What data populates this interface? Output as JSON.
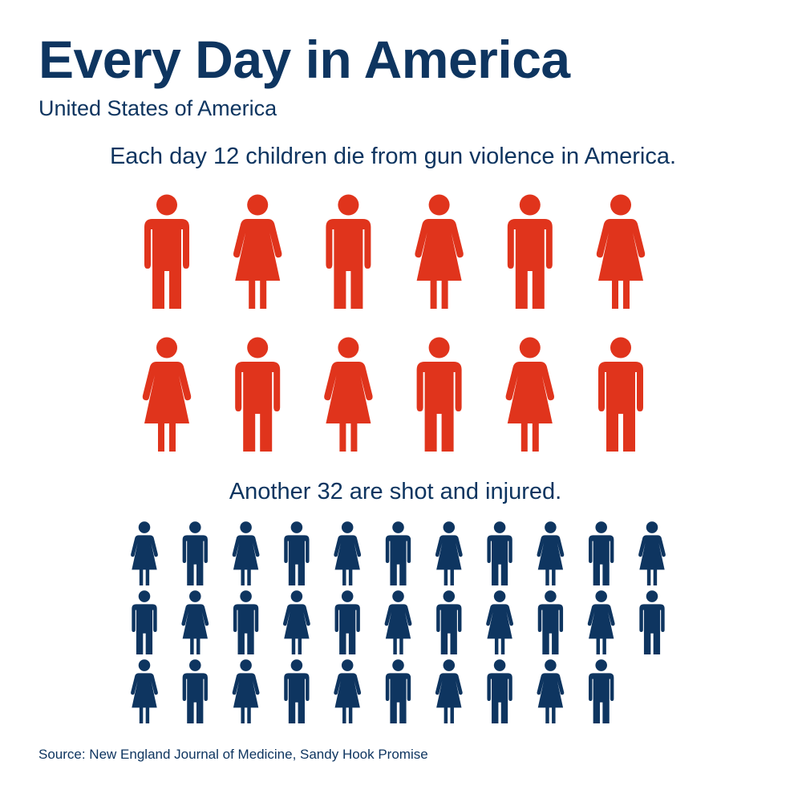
{
  "header": {
    "title": "Every Day in America",
    "subtitle": "United States of America"
  },
  "killed": {
    "before": "Each day ",
    "count": 12,
    "after": " children die from gun violence in America."
  },
  "injured": {
    "before": "Another ",
    "count": 32,
    "after": " are shot and injured."
  },
  "source": "Source: New England Journal of Medicine, Sandy Hook Promise"
}
